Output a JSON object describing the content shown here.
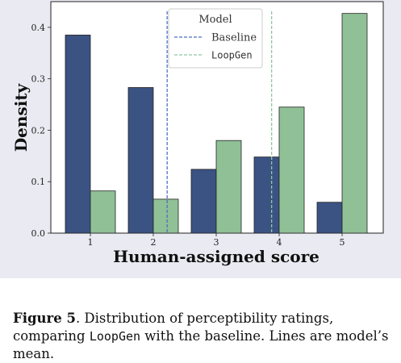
{
  "chart_data": {
    "type": "bar",
    "categories": [
      "1",
      "2",
      "3",
      "4",
      "5"
    ],
    "series": [
      {
        "name": "Baseline",
        "values": [
          0.385,
          0.283,
          0.124,
          0.148,
          0.06
        ],
        "color": "#3b5383"
      },
      {
        "name": "LoopGen",
        "values": [
          0.082,
          0.066,
          0.18,
          0.245,
          0.427
        ],
        "color": "#8fc096"
      }
    ],
    "mean_lines": [
      {
        "series": "Baseline",
        "x": 2.22,
        "color": "#4a72c8"
      },
      {
        "series": "LoopGen",
        "x": 3.88,
        "color": "#8fc7a1"
      }
    ],
    "xlabel": "Human-assigned score",
    "ylabel": "Density",
    "yticks": [
      "0.0",
      "0.1",
      "0.2",
      "0.3",
      "0.4"
    ],
    "ylim": [
      0,
      0.45
    ],
    "legend": {
      "title": "Model",
      "entries": [
        "Baseline",
        "LoopGen"
      ],
      "placement": "top-center"
    },
    "grid": false,
    "background": "#eaeaf2"
  },
  "caption": {
    "label": "Figure 5",
    "text_1": ". Distribution of perceptibility ratings, comparing ",
    "mono": "LoopGen",
    "text_2": " with the baseline. Lines are model’s mean."
  }
}
